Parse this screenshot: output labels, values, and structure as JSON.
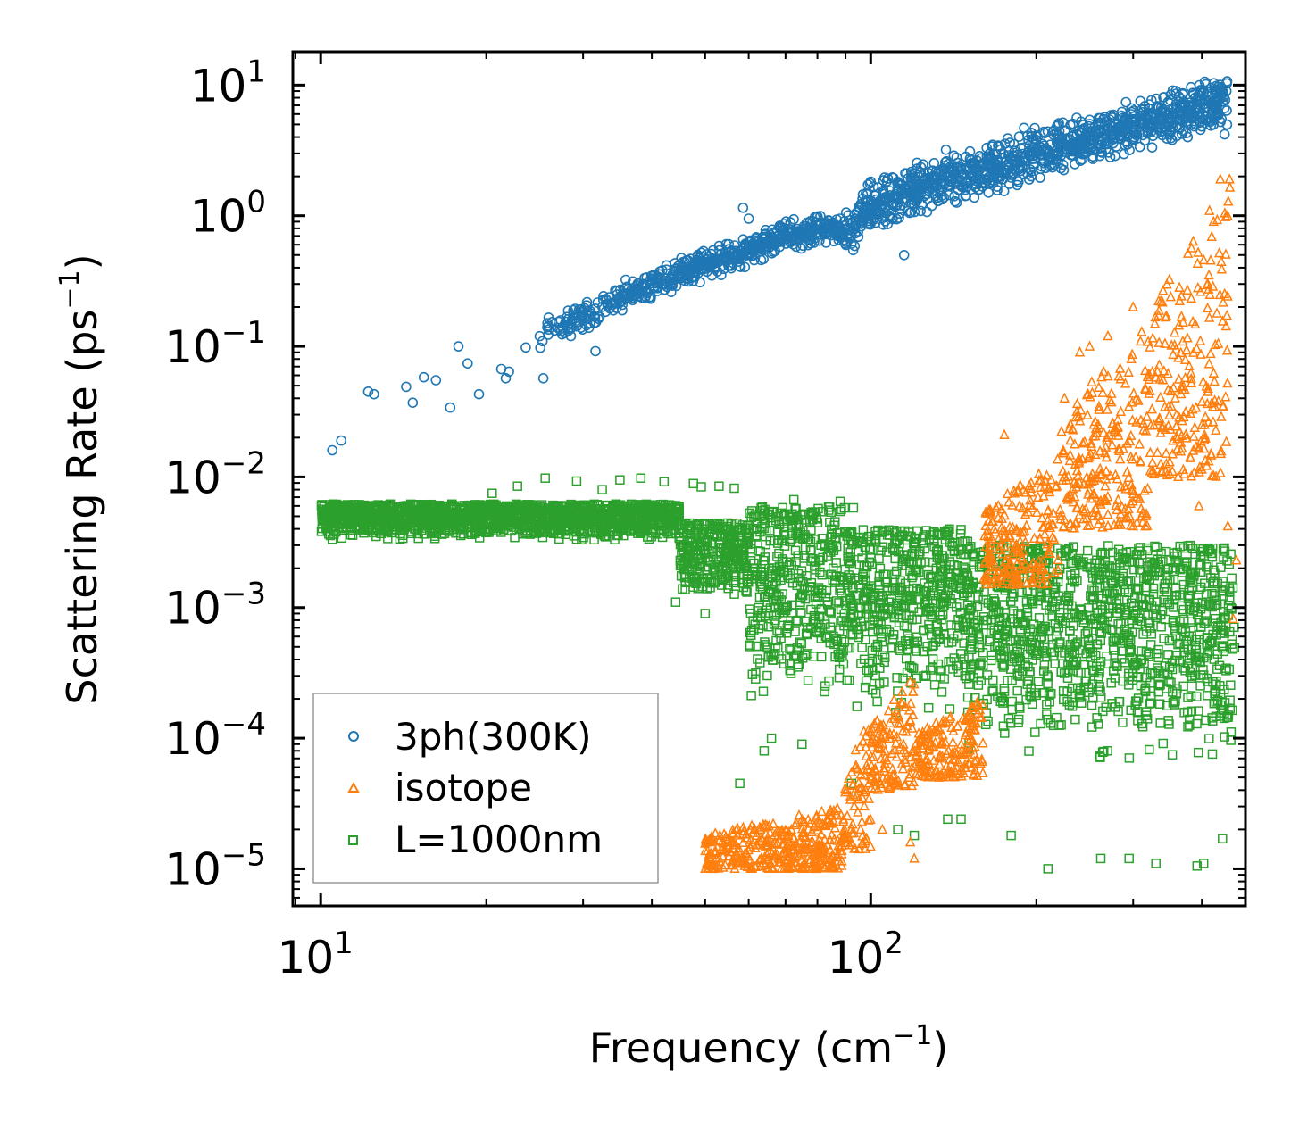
{
  "chart_data": {
    "type": "scatter",
    "xscale": "log",
    "yscale": "log",
    "xlim": [
      8.9,
      480
    ],
    "ylim": [
      5.2e-06,
      18
    ],
    "xlabel": {
      "text": "Frequency (cm",
      "sup": "−1",
      "close": ")"
    },
    "ylabel": {
      "text": "Scattering Rate (ps",
      "sup": "−1",
      "close": ")"
    },
    "x_ticks": [
      {
        "value": 10,
        "base": "10",
        "exp": "1"
      },
      {
        "value": 100,
        "base": "10",
        "exp": "2"
      }
    ],
    "y_ticks": [
      {
        "value": 10,
        "base": "10",
        "exp": "1"
      },
      {
        "value": 1,
        "base": "10",
        "exp": "0"
      },
      {
        "value": 0.1,
        "base": "10",
        "exp": "−1"
      },
      {
        "value": 0.01,
        "base": "10",
        "exp": "−2"
      },
      {
        "value": 0.001,
        "base": "10",
        "exp": "−3"
      },
      {
        "value": 0.0001,
        "base": "10",
        "exp": "−4"
      },
      {
        "value": 1e-05,
        "base": "10",
        "exp": "−5"
      }
    ],
    "legend": {
      "position": "lower-left"
    },
    "series": [
      {
        "name": "3ph(300K)",
        "marker": "circle",
        "color": "#1f77b4",
        "trend": [
          [
            10.5,
            0.016
          ],
          [
            12,
            0.044
          ],
          [
            15,
            0.045
          ],
          [
            20,
            0.06
          ],
          [
            25,
            0.12
          ],
          [
            30,
            0.17
          ],
          [
            40,
            0.3
          ],
          [
            50,
            0.42
          ],
          [
            60,
            0.55
          ],
          [
            70,
            0.7
          ],
          [
            85,
            0.8
          ],
          [
            90,
            0.7
          ],
          [
            100,
            1.2
          ],
          [
            120,
            1.6
          ],
          [
            150,
            2.1
          ],
          [
            200,
            3.0
          ],
          [
            250,
            3.8
          ],
          [
            300,
            4.8
          ],
          [
            350,
            5.8
          ],
          [
            400,
            6.8
          ],
          [
            445,
            7.8
          ]
        ],
        "spread_decades": 0.22,
        "points": [
          [
            10.5,
            0.016
          ],
          [
            10.9,
            0.019
          ],
          [
            12.2,
            0.045
          ],
          [
            12.5,
            0.043
          ],
          [
            14.3,
            0.049
          ],
          [
            14.7,
            0.037
          ],
          [
            15.4,
            0.058
          ],
          [
            16.2,
            0.055
          ],
          [
            17.2,
            0.034
          ],
          [
            17.8,
            0.1
          ],
          [
            18.5,
            0.074
          ],
          [
            19.4,
            0.043
          ],
          [
            21.3,
            0.067
          ],
          [
            21.7,
            0.057
          ],
          [
            22,
            0.064
          ],
          [
            23.6,
            0.098
          ],
          [
            25.4,
            0.057
          ],
          [
            31.6,
            0.092
          ],
          [
            58.6,
            1.15
          ],
          [
            60,
            0.95
          ],
          [
            115,
            0.5
          ],
          [
            119,
            2.1
          ],
          [
            137,
            3.2
          ],
          [
            190,
            4.7
          ],
          [
            265,
            5.5
          ],
          [
            300,
            5.3
          ],
          [
            385,
            8.7
          ],
          [
            422,
            8.9
          ],
          [
            440,
            4.2
          ]
        ]
      },
      {
        "name": "isotope",
        "marker": "triangle",
        "color": "#ff7f0e",
        "bands": [
          {
            "x": [
              50,
              89
            ],
            "ymin": 1e-05,
            "ymax": 3e-05
          },
          {
            "x": [
              89,
              100
            ],
            "ymin": 1.4e-05,
            "ymax": 0.00015
          },
          {
            "x": [
              100,
              120
            ],
            "ymin": 4e-05,
            "ymax": 0.0003
          },
          {
            "x": [
              120,
              160
            ],
            "ymin": 5e-05,
            "ymax": 0.0002
          },
          {
            "x": [
              160,
              220
            ],
            "ymin": 0.0015,
            "ymax": 0.015
          },
          {
            "x": [
              220,
              320
            ],
            "ymin": 0.004,
            "ymax": 0.15
          },
          {
            "x": [
              320,
              450
            ],
            "ymin": 0.01,
            "ymax": 2.0
          }
        ],
        "points": [
          [
            175,
            0.021
          ],
          [
            225,
            0.04
          ],
          [
            240,
            0.09
          ],
          [
            250,
            0.1
          ],
          [
            270,
            0.12
          ],
          [
            300,
            0.2
          ],
          [
            345,
            0.17
          ],
          [
            400,
            0.025
          ],
          [
            410,
            0.3
          ],
          [
            420,
            0.9
          ],
          [
            432,
            1.9
          ],
          [
            395,
            0.006
          ],
          [
            412,
            0.35
          ],
          [
            446,
            0.0042
          ],
          [
            462,
            0.0023
          ],
          [
            456,
            0.00082
          ],
          [
            120,
            1.2e-05
          ],
          [
            118,
            1.6e-05
          ],
          [
            105,
            2e-05
          ],
          [
            72,
            1.2e-05
          ]
        ]
      },
      {
        "name": "L=1000nm",
        "marker": "square",
        "color": "#2ca02c",
        "bands": [
          {
            "x": [
              10,
              45
            ],
            "ymin": 0.0033,
            "ymax": 0.0062
          },
          {
            "x": [
              45,
              60
            ],
            "ymin": 0.0011,
            "ymax": 0.0045
          },
          {
            "x": [
              60,
              90
            ],
            "ymin": 0.0002,
            "ymax": 0.006
          },
          {
            "x": [
              90,
              150
            ],
            "ymin": 0.00015,
            "ymax": 0.004
          },
          {
            "x": [
              150,
              460
            ],
            "ymin": 7e-05,
            "ymax": 0.003
          }
        ],
        "points": [
          [
            10.4,
            0.0044
          ],
          [
            11,
            0.0046
          ],
          [
            11.8,
            0.0049
          ],
          [
            12.2,
            0.005
          ],
          [
            14.2,
            0.006
          ],
          [
            14.5,
            0.0055
          ],
          [
            16.5,
            0.0046
          ],
          [
            18.4,
            0.0047
          ],
          [
            20.5,
            0.0075
          ],
          [
            22.8,
            0.0085
          ],
          [
            25.6,
            0.0098
          ],
          [
            29.2,
            0.0093
          ],
          [
            32.5,
            0.008
          ],
          [
            35,
            0.0095
          ],
          [
            38.2,
            0.0098
          ],
          [
            42.1,
            0.0092
          ],
          [
            47.6,
            0.0089
          ],
          [
            49.2,
            0.0084
          ],
          [
            53,
            0.0085
          ],
          [
            56.5,
            0.0082
          ],
          [
            44.2,
            0.0011
          ],
          [
            50,
            0.0009
          ],
          [
            57.8,
            4.5e-05
          ],
          [
            64,
            8e-05
          ],
          [
            66,
            0.0001
          ],
          [
            75,
            9e-05
          ],
          [
            92.3,
            4.5e-05
          ],
          [
            112,
            2e-05
          ],
          [
            120,
            1.8e-05
          ],
          [
            138,
            2.4e-05
          ],
          [
            146,
            2.4e-05
          ],
          [
            180,
            1.8e-05
          ],
          [
            210,
            1e-05
          ],
          [
            262,
            1.2e-05
          ],
          [
            295,
            1.2e-05
          ],
          [
            330,
            1.1e-05
          ],
          [
            392,
            1.05e-05
          ],
          [
            403,
            1.1e-05
          ],
          [
            436,
            1.7e-05
          ],
          [
            72.5,
            0.0067
          ],
          [
            88,
            0.0065
          ],
          [
            93,
            0.0058
          ]
        ]
      }
    ]
  }
}
